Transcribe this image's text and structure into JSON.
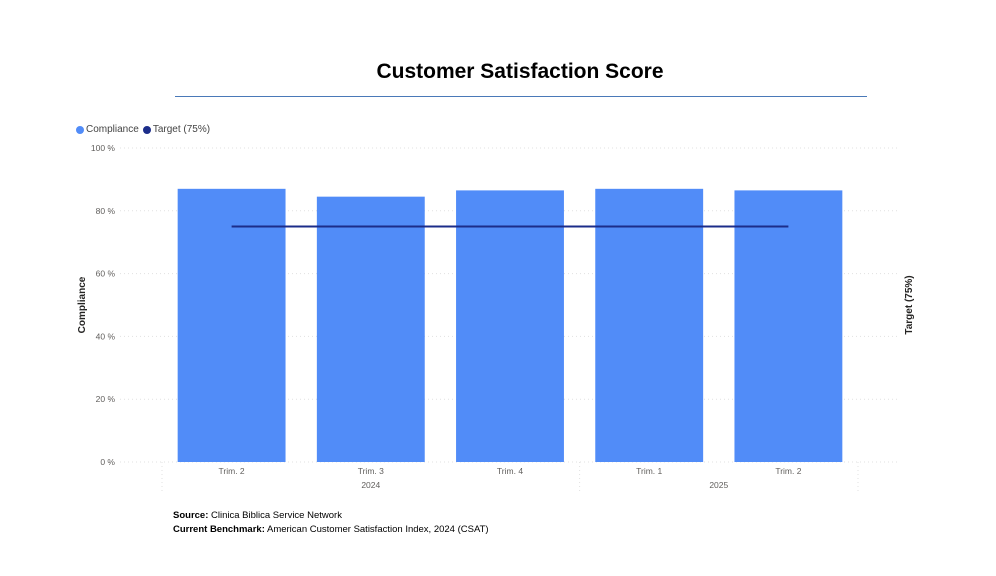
{
  "title": "Customer Satisfaction Score",
  "legend": [
    {
      "label": "Compliance",
      "color": "#518cf8"
    },
    {
      "label": "Target (75%)",
      "color": "#1c2d8a"
    }
  ],
  "footer": {
    "source_label": "Source:",
    "source_text": "Clinica Biblica Service Network",
    "benchmark_label": "Current Benchmark:",
    "benchmark_text": "American Customer Satisfaction Index, 2024 (CSAT)"
  },
  "chart_data": {
    "type": "bar",
    "categories": [
      "Trim. 2",
      "Trim. 3",
      "Trim. 4",
      "Trim. 1",
      "Trim. 2"
    ],
    "category_groups": [
      {
        "label": "2024",
        "span": 3
      },
      {
        "label": "2025",
        "span": 2
      }
    ],
    "series": [
      {
        "name": "Compliance",
        "type": "bar",
        "color": "#518cf8",
        "values": [
          87,
          84.5,
          86.5,
          87,
          86.5
        ]
      },
      {
        "name": "Target (75%)",
        "type": "line",
        "color": "#1c2d8a",
        "values": [
          75,
          75,
          75,
          75,
          75
        ]
      }
    ],
    "ylabel": "Compliance",
    "y2label": "Target (75%)",
    "ylim": [
      0,
      100
    ],
    "yticks": [
      "0 %",
      "20 %",
      "40 %",
      "60 %",
      "80 %",
      "100 %"
    ],
    "ytick_values": [
      0,
      20,
      40,
      60,
      80,
      100
    ],
    "grid": true,
    "legend_position": "top-left"
  }
}
